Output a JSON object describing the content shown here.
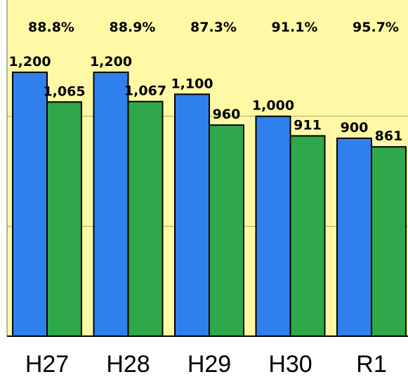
{
  "chart_data": {
    "type": "bar",
    "categories": [
      "H27",
      "H28",
      "H29",
      "H30",
      "R1"
    ],
    "series": [
      {
        "values": [
          1200,
          1200,
          1100,
          1000,
          900
        ],
        "color": "#2f80ed"
      },
      {
        "values": [
          1065,
          1067,
          960,
          911,
          861
        ],
        "color": "#2ea84a"
      }
    ],
    "value_labels": [
      [
        "1,200",
        "1,200",
        "1,100",
        "1,000",
        "900"
      ],
      [
        "1,065",
        "1,067",
        "960",
        "911",
        "861"
      ]
    ],
    "ratio_labels": [
      "88.8%",
      "88.9%",
      "87.3%",
      "91.1%",
      "95.7%"
    ],
    "ylim": [
      0,
      1500
    ],
    "grid": true,
    "plot_background": "#fff9a6",
    "gridline_color": "#aaaa55"
  }
}
